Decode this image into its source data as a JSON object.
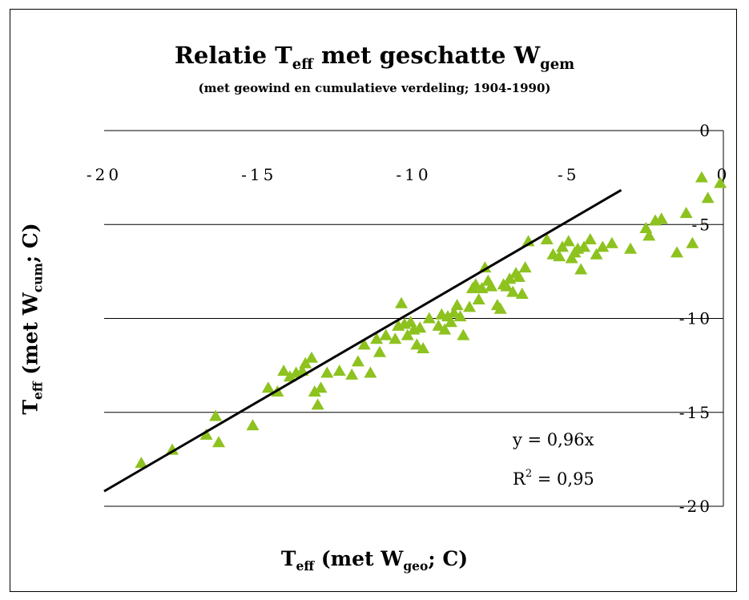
{
  "chart_data": {
    "type": "scatter",
    "title_main": "Relatie T",
    "title_sub_eff": "eff",
    "title_middle": " met geschatte W",
    "title_sub_gem": "gem",
    "subtitle": "(met geowind en cumulatieve verdeling; 1904-1990)",
    "xlabel_main": "T",
    "xlabel_sub_eff": "eff",
    "xlabel_middle": " (met W",
    "xlabel_sub_geo": "geo",
    "xlabel_end": "; C)",
    "ylabel_main": "T",
    "ylabel_sub_eff": "eff",
    "ylabel_middle": " (met W",
    "ylabel_sub_cum": "cum",
    "ylabel_end": "; C)",
    "xlim": [
      -20,
      0
    ],
    "ylim": [
      -20,
      0
    ],
    "x_ticks": [
      -20,
      -15,
      -10,
      -5,
      0
    ],
    "x_tick_labels": [
      "-20",
      "-15",
      "-10",
      "-5",
      "0"
    ],
    "y_ticks": [
      0,
      -5,
      -10,
      -15,
      -20
    ],
    "y_tick_labels": [
      "0",
      "-5",
      "-10",
      "-15",
      "-20"
    ],
    "grid": true,
    "marker": "triangle",
    "marker_color": "#8dc21f",
    "trendline_color": "#000000",
    "equation": "y = 0,96x",
    "r_squared_label": "R",
    "r_squared_exp": "2",
    "r_squared_value": " = 0,95",
    "trendline": {
      "slope": 0.96,
      "intercept": 0,
      "x_range": [
        -20.0,
        -3.3
      ]
    },
    "series": [
      {
        "name": "",
        "points": [
          [
            -18.8,
            -17.7
          ],
          [
            -17.8,
            -17.0
          ],
          [
            -16.7,
            -16.2
          ],
          [
            -16.4,
            -15.2
          ],
          [
            -16.3,
            -16.6
          ],
          [
            -15.2,
            -15.7
          ],
          [
            -14.7,
            -13.7
          ],
          [
            -14.4,
            -13.9
          ],
          [
            -14.2,
            -12.8
          ],
          [
            -14.0,
            -13.1
          ],
          [
            -13.8,
            -12.9
          ],
          [
            -13.6,
            -12.8
          ],
          [
            -13.5,
            -12.4
          ],
          [
            -13.3,
            -12.1
          ],
          [
            -13.2,
            -13.9
          ],
          [
            -13.1,
            -14.6
          ],
          [
            -13.0,
            -13.7
          ],
          [
            -12.8,
            -12.9
          ],
          [
            -12.4,
            -12.8
          ],
          [
            -12.0,
            -13.0
          ],
          [
            -11.8,
            -12.3
          ],
          [
            -11.6,
            -11.4
          ],
          [
            -11.4,
            -12.9
          ],
          [
            -11.1,
            -11.8
          ],
          [
            -10.9,
            -10.9
          ],
          [
            -10.6,
            -11.1
          ],
          [
            -10.5,
            -10.4
          ],
          [
            -10.4,
            -9.2
          ],
          [
            -10.3,
            -10.3
          ],
          [
            -10.2,
            -10.9
          ],
          [
            -10.1,
            -10.2
          ],
          [
            -10.0,
            -10.6
          ],
          [
            -9.9,
            -11.4
          ],
          [
            -9.8,
            -10.5
          ],
          [
            -9.7,
            -11.6
          ],
          [
            -9.2,
            -10.4
          ],
          [
            -9.1,
            -9.8
          ],
          [
            -9.0,
            -10.6
          ],
          [
            -8.9,
            -9.9
          ],
          [
            -8.8,
            -10.2
          ],
          [
            -8.7,
            -9.7
          ],
          [
            -8.6,
            -9.3
          ],
          [
            -8.5,
            -9.9
          ],
          [
            -8.4,
            -10.9
          ],
          [
            -8.2,
            -9.4
          ],
          [
            -8.1,
            -8.4
          ],
          [
            -8.0,
            -8.2
          ],
          [
            -7.9,
            -9.0
          ],
          [
            -7.8,
            -8.4
          ],
          [
            -7.7,
            -7.3
          ],
          [
            -7.6,
            -8.0
          ],
          [
            -7.5,
            -8.3
          ],
          [
            -7.3,
            -9.3
          ],
          [
            -7.1,
            -8.2
          ],
          [
            -7.0,
            -8.3
          ],
          [
            -6.9,
            -7.9
          ],
          [
            -6.8,
            -8.6
          ],
          [
            -6.6,
            -7.8
          ],
          [
            -6.5,
            -8.7
          ],
          [
            -6.4,
            -7.3
          ],
          [
            -6.3,
            -5.9
          ],
          [
            -5.7,
            -5.8
          ],
          [
            -5.5,
            -6.6
          ],
          [
            -5.3,
            -6.7
          ],
          [
            -5.2,
            -6.2
          ],
          [
            -5.0,
            -5.9
          ],
          [
            -4.9,
            -6.8
          ],
          [
            -4.8,
            -6.5
          ],
          [
            -4.7,
            -6.3
          ],
          [
            -4.6,
            -7.4
          ],
          [
            -4.5,
            -6.2
          ],
          [
            -4.3,
            -5.8
          ],
          [
            -4.1,
            -6.6
          ],
          [
            -3.9,
            -6.2
          ],
          [
            -3.6,
            -6.0
          ],
          [
            -3.0,
            -6.3
          ],
          [
            -2.5,
            -5.2
          ],
          [
            -2.4,
            -5.6
          ],
          [
            -2.2,
            -4.8
          ],
          [
            -2.0,
            -4.7
          ],
          [
            -1.5,
            -6.5
          ],
          [
            -1.2,
            -4.4
          ],
          [
            -1.0,
            -6.0
          ],
          [
            -0.7,
            -2.5
          ],
          [
            -0.5,
            -3.6
          ],
          [
            -0.1,
            -2.8
          ],
          [
            -6.7,
            -7.6
          ],
          [
            -7.2,
            -9.5
          ],
          [
            -9.5,
            -10.0
          ],
          [
            -11.2,
            -11.1
          ]
        ]
      }
    ]
  }
}
